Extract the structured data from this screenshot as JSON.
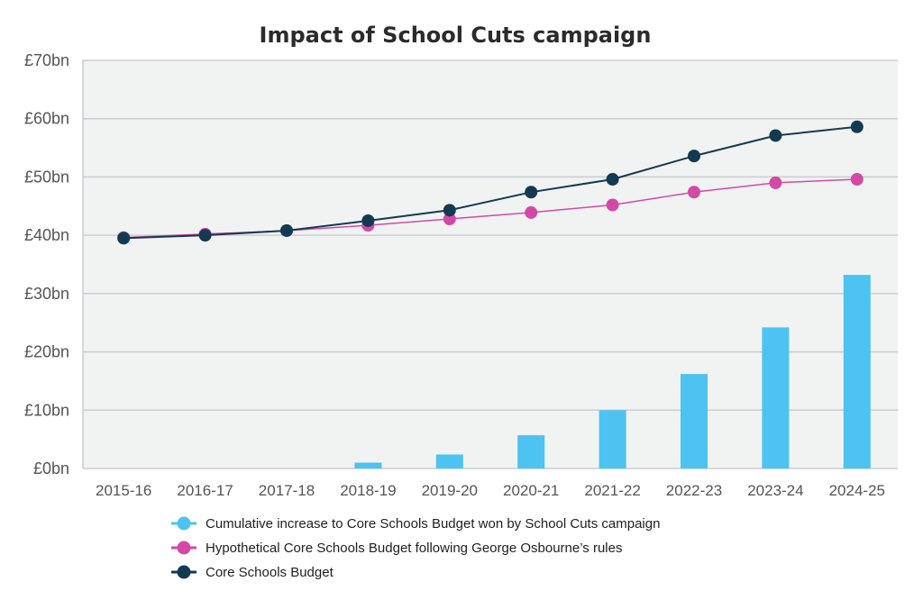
{
  "chart_data": {
    "type": "bar+line",
    "title": "Impact of School Cuts campaign",
    "categories": [
      "2015-16",
      "2016-17",
      "2017-18",
      "2018-19",
      "2019-20",
      "2020-21",
      "2021-22",
      "2022-23",
      "2023-24",
      "2024-25"
    ],
    "ylim": [
      0,
      70
    ],
    "yticks": [
      {
        "value": 0,
        "label": "£0bn"
      },
      {
        "value": 10,
        "label": "£10bn"
      },
      {
        "value": 20,
        "label": "£20bn"
      },
      {
        "value": 30,
        "label": "£30bn"
      },
      {
        "value": 40,
        "label": "£40bn"
      },
      {
        "value": 50,
        "label": "£50bn"
      },
      {
        "value": 60,
        "label": "£60bn"
      },
      {
        "value": 70,
        "label": "£70bn"
      }
    ],
    "grid": true,
    "legend_position": "bottom",
    "series": [
      {
        "name": "Cumulative increase to Core Schools Budget won by School Cuts campaign",
        "type": "bar",
        "color": "#4cc3f0",
        "values": [
          0,
          0,
          0,
          1.0,
          2.4,
          5.7,
          10.0,
          16.2,
          24.2,
          33.2
        ]
      },
      {
        "name": "Hypothetical Core Schools Budget following George Osbourne’s rules",
        "type": "line",
        "color": "#d24aa5",
        "values": [
          39.6,
          40.2,
          40.8,
          41.7,
          42.8,
          43.9,
          45.2,
          47.4,
          49.0,
          49.6
        ]
      },
      {
        "name": "Core Schools Budget",
        "type": "line",
        "color": "#143a52",
        "values": [
          39.5,
          40.0,
          40.8,
          42.5,
          44.3,
          47.4,
          49.6,
          53.6,
          57.1,
          58.6
        ]
      }
    ],
    "plot_background": "#f1f3f3",
    "grid_color": "#c9cdcf"
  }
}
